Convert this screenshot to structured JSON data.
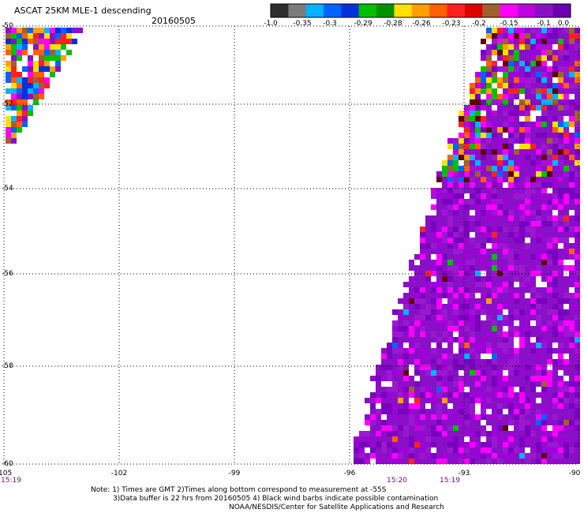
{
  "header": {
    "title": "ASCAT 25KM MLE-1 descending",
    "date": "20160505"
  },
  "colorbar": {
    "colors": [
      "#2d2d2d",
      "#7b7b7b",
      "#00b4ff",
      "#0064ff",
      "#0030e0",
      "#00c000",
      "#009000",
      "#ffe000",
      "#ffa000",
      "#ff6000",
      "#ff2020",
      "#e00000",
      "#a06030",
      "#ff00ff",
      "#c000e0",
      "#8a10c8",
      "#6a00b0"
    ],
    "labels": [
      "-1.0",
      "-0.35",
      "-0.3",
      "-0.29",
      "-0.28",
      "-0.26",
      "-0.23",
      "-0.2",
      "-0.15",
      "-0.1",
      "0.0"
    ]
  },
  "axes": {
    "y_ticks": [
      "-52",
      "-54",
      "-56",
      "-58",
      "-60"
    ],
    "y_top_label": "-50",
    "x_ticks": [
      "-105",
      "-102",
      "-99",
      "-96",
      "-93",
      "-90"
    ]
  },
  "times": [
    {
      "label": "15:19",
      "at": "left"
    },
    {
      "label": "15:20",
      "at": "-96"
    },
    {
      "label": "15:19",
      "at": "-93"
    }
  ],
  "notes": [
    "Note: 1) Times are GMT 2)Times along bottom correspond to measurement at -55S",
    "3)Data buffer is 22 hrs from 20160505 4) Black wind barbs indicate possible contamination",
    "NOAA/NESDIS/Center for Satellite Applications and Research"
  ]
}
